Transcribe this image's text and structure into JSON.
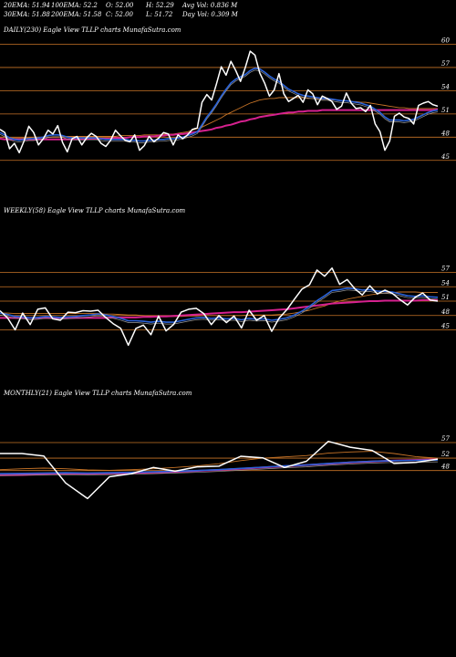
{
  "header": {
    "row1": [
      {
        "label": "20EMA:",
        "value": "51.94"
      },
      {
        "label": "100EMA:",
        "value": "52.2"
      },
      {
        "label": "O:",
        "value": "52.00"
      },
      {
        "label": "H:",
        "value": "52.29"
      },
      {
        "label": "Avg Vol:",
        "value": "0.836  M"
      }
    ],
    "row2": [
      {
        "label": "30EMA:",
        "value": "51.88"
      },
      {
        "label": "200EMA:",
        "value": "51.58"
      },
      {
        "label": "C:",
        "value": "52.00"
      },
      {
        "label": "L:",
        "value": "51.72"
      },
      {
        "label": "Day Vol:",
        "value": "0.309  M"
      }
    ]
  },
  "colors": {
    "background": "#000000",
    "price": "#ffffff",
    "ema_fast": "#2a62d8",
    "ema_slow": "#d6218f",
    "ema_orange": "#c87427",
    "gridline": "#c87427",
    "ema_gray": "#9a9a9a"
  },
  "chart_data": [
    {
      "type": "line",
      "panel_label": "DAILY(230) Eagle   View  TLLP charts MunafaSutra.com",
      "yticks": [
        60,
        57,
        54,
        51,
        48,
        45
      ],
      "ylim": [
        44.5,
        61
      ],
      "grid": true,
      "series": [
        {
          "role": "price",
          "values": [
            49,
            48.6,
            46.5,
            47.2,
            46,
            47.5,
            49.4,
            48.6,
            47,
            47.8,
            48.9,
            48.4,
            49.5,
            47.3,
            46.1,
            47.8,
            48.1,
            47,
            47.9,
            48.5,
            48.1,
            47.2,
            46.8,
            47.6,
            48.9,
            48.2,
            47.6,
            47.4,
            48.3,
            46.3,
            46.9,
            48.1,
            47.4,
            47.9,
            48.6,
            48.4,
            47,
            48.3,
            47.8,
            48.3,
            49,
            49.2,
            52.5,
            53.5,
            52.8,
            54.9,
            57.1,
            56,
            57.8,
            56.6,
            55.2,
            57,
            59.1,
            58.6,
            56.3,
            55,
            53.3,
            54.1,
            56.2,
            53.6,
            52.6,
            53,
            53.4,
            52.5,
            54.1,
            53.6,
            52.2,
            53.3,
            53,
            52.6,
            51.6,
            52,
            53.7,
            52.4,
            51.7,
            51.8,
            51.3,
            52.1,
            49.7,
            48.7,
            46.3,
            47.5,
            50.7,
            51.1,
            50.6,
            50.4,
            49.7,
            52.1,
            52.4,
            52.6,
            52.2,
            52
          ]
        },
        {
          "role": "ema_fast",
          "values": [
            48.6,
            48.3,
            47.9,
            47.7,
            47.6,
            47.7,
            47.8,
            47.8,
            47.9,
            48,
            48.2,
            48.3,
            48.3,
            48.2,
            48,
            47.9,
            47.9,
            47.9,
            47.9,
            47.9,
            47.9,
            47.8,
            47.7,
            47.7,
            47.7,
            47.7,
            47.7,
            47.6,
            47.6,
            47.5,
            47.5,
            47.6,
            47.6,
            47.7,
            47.7,
            47.8,
            47.8,
            47.9,
            48,
            48.2,
            48.4,
            48.7,
            49.6,
            50.6,
            51.4,
            52.3,
            53.3,
            54.2,
            55,
            55.5,
            55.8,
            56.1,
            56.6,
            56.9,
            56.8,
            56.4,
            55.9,
            55.5,
            55.2,
            54.7,
            54.2,
            53.9,
            53.6,
            53.4,
            53.3,
            53.2,
            53.1,
            53,
            53,
            52.9,
            52.8,
            52.7,
            52.7,
            52.6,
            52.5,
            52.4,
            52.2,
            52,
            51.6,
            51.2,
            50.6,
            50.2,
            50.2,
            50.2,
            50.1,
            50.2,
            50.3,
            50.6,
            50.9,
            51.2,
            51.4,
            51.5
          ]
        },
        {
          "role": "ema_slow",
          "values": [
            47.8,
            47.7,
            47.7,
            47.7,
            47.7,
            47.7,
            47.7,
            47.7,
            47.7,
            47.7,
            47.7,
            47.7,
            47.7,
            47.7,
            47.7,
            47.7,
            47.7,
            47.7,
            47.7,
            47.8,
            47.8,
            47.8,
            47.8,
            47.8,
            47.9,
            47.9,
            47.9,
            48,
            48,
            48,
            48.1,
            48.1,
            48.1,
            48.2,
            48.2,
            48.3,
            48.3,
            48.4,
            48.4,
            48.5,
            48.6,
            48.7,
            48.8,
            48.9,
            49,
            49.2,
            49.3,
            49.5,
            49.6,
            49.8,
            50,
            50.1,
            50.3,
            50.4,
            50.6,
            50.7,
            50.8,
            50.9,
            51,
            51.1,
            51.2,
            51.2,
            51.3,
            51.3,
            51.4,
            51.4,
            51.4,
            51.5,
            51.5,
            51.5,
            51.5,
            51.5,
            51.5,
            51.5,
            51.5,
            51.5,
            51.5,
            51.5,
            51.5,
            51.5,
            51.5,
            51.5,
            51.5,
            51.5,
            51.5,
            51.5,
            51.5,
            51.5,
            51.5,
            51.5,
            51.5,
            51.6
          ]
        },
        {
          "role": "ema_orange",
          "values": [
            48,
            48,
            47.9,
            47.9,
            47.9,
            47.9,
            47.9,
            48,
            48,
            48,
            48,
            48,
            48,
            48.1,
            48.1,
            48.1,
            48.1,
            48.1,
            48.1,
            48.1,
            48.1,
            48.1,
            48.1,
            48.1,
            48.1,
            48.2,
            48.2,
            48.2,
            48.2,
            48.2,
            48.3,
            48.3,
            48.3,
            48.3,
            48.4,
            48.4,
            48.4,
            48.5,
            48.6,
            48.7,
            48.9,
            49.1,
            49.3,
            49.6,
            49.9,
            50.2,
            50.5,
            50.9,
            51.2,
            51.5,
            51.8,
            52.1,
            52.4,
            52.6,
            52.8,
            52.9,
            53,
            53,
            53.1,
            53.1,
            53.1,
            53.1,
            53.1,
            53.1,
            53,
            53,
            53,
            52.9,
            52.9,
            52.8,
            52.8,
            52.7,
            52.7,
            52.6,
            52.6,
            52.5,
            52.5,
            52.4,
            52.3,
            52.2,
            52.1,
            52,
            51.9,
            51.8,
            51.8,
            51.7,
            51.7,
            51.7,
            51.7,
            51.7,
            51.7,
            51.7
          ]
        }
      ]
    },
    {
      "type": "line",
      "panel_label": "WEEKLY(58) Eagle   View  TLLP charts MunafaSutra.com",
      "yticks": [
        57,
        54,
        51,
        48,
        45
      ],
      "ylim": [
        43,
        59
      ],
      "grid": true,
      "series": [
        {
          "role": "price",
          "values": [
            49,
            47.5,
            45,
            48.5,
            46.1,
            49.3,
            49.6,
            47.3,
            47,
            48.7,
            48.6,
            49,
            48.9,
            49.1,
            47.6,
            46.3,
            45.3,
            41.8,
            45.3,
            46,
            44,
            47.9,
            44.8,
            46.1,
            48.7,
            49.3,
            49.5,
            48.4,
            46.1,
            48,
            46.5,
            47.9,
            45.4,
            49.1,
            47,
            48,
            44.7,
            47.5,
            49.2,
            51.4,
            53.5,
            54.4,
            57.5,
            56.2,
            57.9,
            54.5,
            55.5,
            53.6,
            52.3,
            54.2,
            52.5,
            53.3,
            52.6,
            51.3,
            50.2,
            51.8,
            52.7,
            51.2,
            51
          ]
        },
        {
          "role": "ema_fast",
          "values": [
            48.5,
            48.2,
            47.8,
            47.7,
            47.5,
            47.6,
            47.8,
            47.7,
            47.6,
            47.7,
            47.8,
            48,
            48.1,
            48.3,
            48.1,
            47.8,
            47.4,
            46.9,
            46.9,
            46.8,
            46.6,
            46.8,
            46.6,
            46.6,
            46.9,
            47.2,
            47.5,
            47.6,
            47.4,
            47.5,
            47.3,
            47.4,
            47.1,
            47.4,
            47.2,
            47.3,
            47,
            47.2,
            47.5,
            48.1,
            48.9,
            49.9,
            51.1,
            52.1,
            53.2,
            53.4,
            53.7,
            53.6,
            53.3,
            53.4,
            53.1,
            53,
            52.9,
            52.5,
            52.1,
            52,
            52.1,
            51.9,
            51.8
          ]
        },
        {
          "role": "ema_slow",
          "values": [
            47.5,
            47.5,
            47.5,
            47.5,
            47.5,
            47.5,
            47.5,
            47.5,
            47.5,
            47.5,
            47.5,
            47.5,
            47.5,
            47.5,
            47.5,
            47.6,
            47.6,
            47.6,
            47.6,
            47.7,
            47.7,
            47.8,
            47.8,
            47.9,
            48,
            48.1,
            48.2,
            48.3,
            48.4,
            48.5,
            48.6,
            48.7,
            48.7,
            48.8,
            48.9,
            49,
            49.1,
            49.2,
            49.3,
            49.5,
            49.7,
            49.9,
            50.1,
            50.3,
            50.5,
            50.6,
            50.7,
            50.8,
            50.9,
            51,
            51,
            51.1,
            51.1,
            51.1,
            51.1,
            51.1,
            51.2,
            51.2,
            51.2
          ]
        },
        {
          "role": "ema_orange",
          "values": [
            48.5,
            48.5,
            48.4,
            48.4,
            48.4,
            48.4,
            48.4,
            48.4,
            48.4,
            48.4,
            48.4,
            48.4,
            48.4,
            48.4,
            48.3,
            48.3,
            48.2,
            48.1,
            48.1,
            48,
            47.9,
            47.9,
            47.8,
            47.8,
            47.8,
            47.9,
            47.9,
            48,
            48,
            48,
            48,
            48,
            48,
            48.1,
            48.1,
            48.1,
            48.1,
            48.2,
            48.3,
            48.5,
            48.8,
            49.1,
            49.6,
            50,
            50.6,
            51,
            51.4,
            51.7,
            52,
            52.3,
            52.5,
            52.7,
            52.8,
            52.9,
            52.9,
            52.9,
            52.8,
            52.8,
            52.8
          ]
        }
      ]
    },
    {
      "type": "line",
      "panel_label": "MONTHLY(21) Eagle   View  TLLP charts MunafaSutra.com",
      "yticks": [
        57,
        52,
        48
      ],
      "ylim": [
        35,
        62
      ],
      "grid": true,
      "series": [
        {
          "role": "price",
          "values": [
            53.5,
            53.5,
            52.7,
            44,
            39,
            46,
            47,
            49,
            47.8,
            49.2,
            49.4,
            52.6,
            52.1,
            49,
            51,
            57.4,
            55.5,
            54.5,
            50.3,
            50.6,
            51.7
          ]
        },
        {
          "role": "ema_fast",
          "values": [
            47,
            47.1,
            47.2,
            47.3,
            47.2,
            47.3,
            47.4,
            47.6,
            47.8,
            48,
            48.3,
            48.7,
            49.1,
            49.5,
            49.8,
            50.3,
            50.7,
            51,
            51.2,
            51.3,
            51.4
          ]
        },
        {
          "role": "ema_slow",
          "values": [
            46.5,
            46.6,
            46.8,
            47,
            47,
            47.1,
            47.2,
            47.4,
            47.6,
            47.9,
            48.2,
            48.6,
            49,
            49.4,
            49.8,
            50.2,
            50.6,
            50.9,
            51.2,
            51.4,
            51.6
          ]
        },
        {
          "role": "ema_orange",
          "values": [
            48.3,
            48.6,
            48.8,
            48.6,
            48.2,
            48.1,
            48.3,
            48.6,
            49,
            49.5,
            50.2,
            51.2,
            52,
            52.4,
            52.8,
            53.6,
            54,
            54.2,
            53.5,
            52.5,
            52
          ]
        }
      ]
    }
  ]
}
